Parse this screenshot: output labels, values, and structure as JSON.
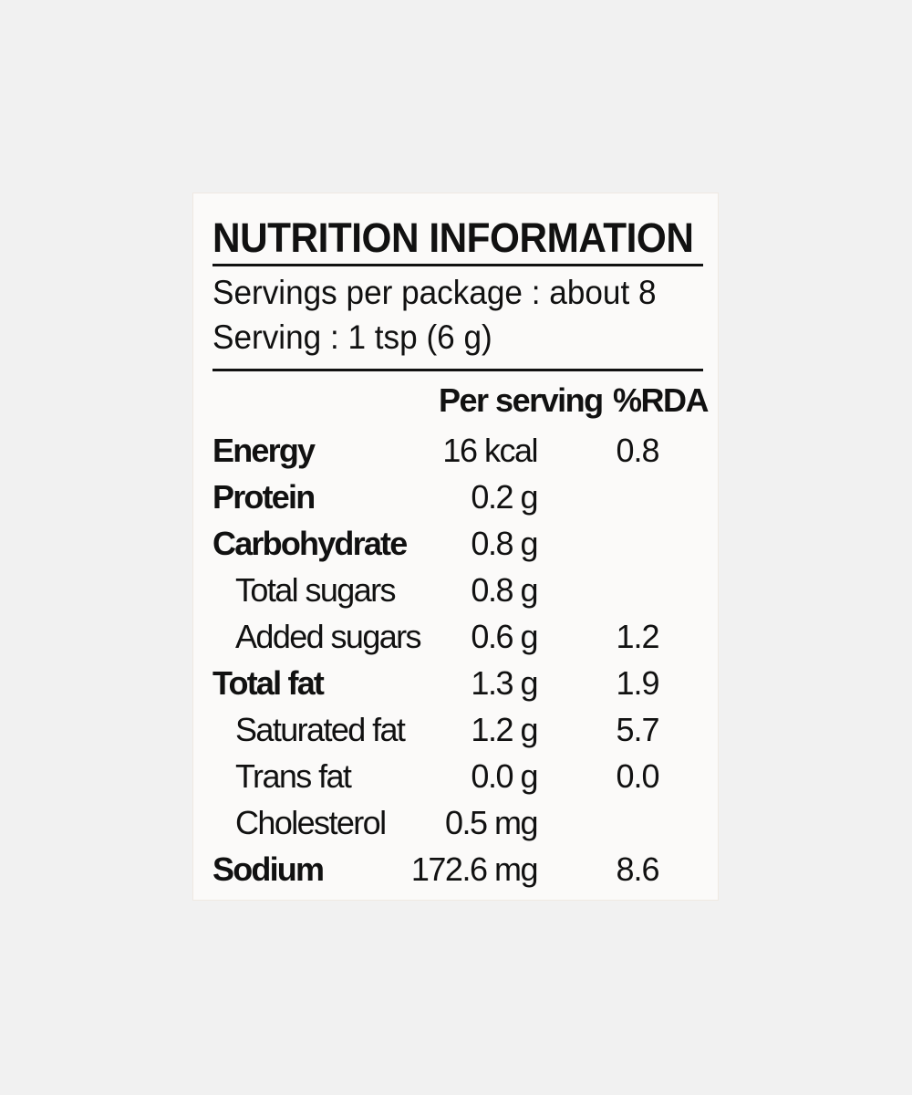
{
  "label": {
    "title": "NUTRITION INFORMATION",
    "servings_per_package": "Servings per package : about 8",
    "serving_size": "Serving : 1 tsp (6 g)",
    "columns": {
      "per_serving": "Per serving",
      "rda": "%RDA"
    },
    "rows": [
      {
        "name": "Energy",
        "per_serving": "16 kcal",
        "rda": "0.8"
      },
      {
        "name": "Protein",
        "per_serving": "0.2 g",
        "rda": ""
      },
      {
        "name": "Carbohydrate",
        "per_serving": "0.8 g",
        "rda": ""
      },
      {
        "name": "Total sugars",
        "per_serving": "0.8 g",
        "rda": ""
      },
      {
        "name": "Added sugars",
        "per_serving": "0.6 g",
        "rda": "1.2"
      },
      {
        "name": "Total fat",
        "per_serving": "1.3 g",
        "rda": "1.9"
      },
      {
        "name": "Saturated fat",
        "per_serving": "1.2 g",
        "rda": "5.7"
      },
      {
        "name": "Trans fat",
        "per_serving": "0.0 g",
        "rda": "0.0"
      },
      {
        "name": "Cholesterol",
        "per_serving": "0.5 mg",
        "rda": ""
      },
      {
        "name": "Sodium",
        "per_serving": "172.6 mg",
        "rda": "8.6"
      }
    ]
  }
}
